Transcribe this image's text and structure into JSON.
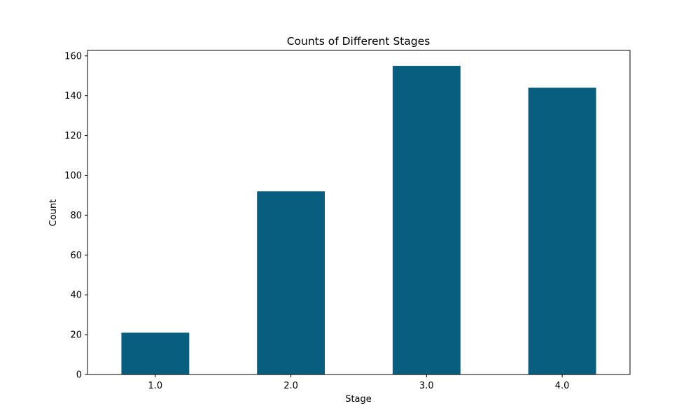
{
  "chart_data": {
    "type": "bar",
    "title": "Counts of Different Stages",
    "xlabel": "Stage",
    "ylabel": "Count",
    "categories": [
      "1.0",
      "2.0",
      "3.0",
      "4.0"
    ],
    "values": [
      21,
      92,
      155,
      144
    ],
    "ylim": [
      0,
      162.75
    ],
    "yticks": [
      0,
      20,
      40,
      60,
      80,
      100,
      120,
      140,
      160
    ],
    "grid": false,
    "legend": "none",
    "colors": {
      "bar": "#075e7e"
    }
  }
}
